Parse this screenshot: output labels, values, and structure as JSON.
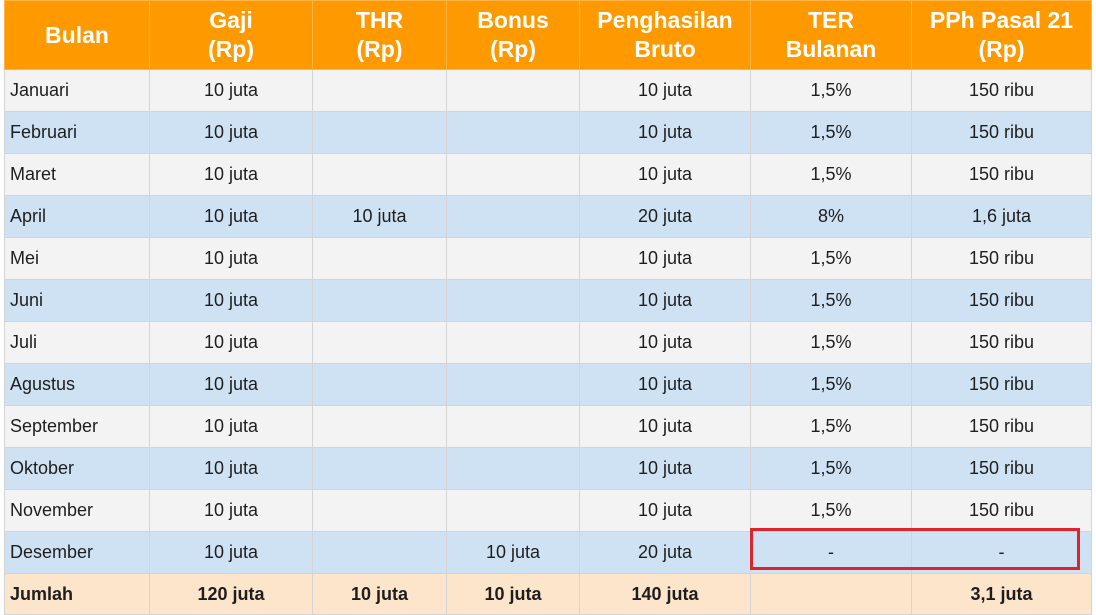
{
  "colors": {
    "header_bg": "#ff9900",
    "header_text": "#ffffff",
    "row_light": "#f3f3f3",
    "row_blue": "#cfe2f3",
    "total_row_bg": "#fde5cc",
    "highlight_border": "#d9252b"
  },
  "table": {
    "headers": [
      [
        "Bulan"
      ],
      [
        "Gaji",
        "(Rp)"
      ],
      [
        "THR",
        "(Rp)"
      ],
      [
        "Bonus",
        "(Rp)"
      ],
      [
        "Penghasilan",
        "Bruto"
      ],
      [
        "TER",
        "Bulanan"
      ],
      [
        "PPh Pasal 21",
        "(Rp)"
      ]
    ],
    "rows": [
      [
        "Januari",
        "10 juta",
        "",
        "",
        "10 juta",
        "1,5%",
        "150 ribu"
      ],
      [
        "Februari",
        "10 juta",
        "",
        "",
        "10 juta",
        "1,5%",
        "150 ribu"
      ],
      [
        "Maret",
        "10 juta",
        "",
        "",
        "10 juta",
        "1,5%",
        "150 ribu"
      ],
      [
        "April",
        "10 juta",
        "10 juta",
        "",
        "20 juta",
        "8%",
        "1,6 juta"
      ],
      [
        "Mei",
        "10 juta",
        "",
        "",
        "10 juta",
        "1,5%",
        "150 ribu"
      ],
      [
        "Juni",
        "10 juta",
        "",
        "",
        "10 juta",
        "1,5%",
        "150 ribu"
      ],
      [
        "Juli",
        "10 juta",
        "",
        "",
        "10 juta",
        "1,5%",
        "150 ribu"
      ],
      [
        "Agustus",
        "10 juta",
        "",
        "",
        "10 juta",
        "1,5%",
        "150 ribu"
      ],
      [
        "September",
        "10 juta",
        "",
        "",
        "10 juta",
        "1,5%",
        "150 ribu"
      ],
      [
        "Oktober",
        "10 juta",
        "",
        "",
        "10 juta",
        "1,5%",
        "150 ribu"
      ],
      [
        "November",
        "10 juta",
        "",
        "",
        "10 juta",
        "1,5%",
        "150 ribu"
      ],
      [
        "Desember",
        "10 juta",
        "",
        "10 juta",
        "20 juta",
        "-",
        "-"
      ]
    ],
    "total": [
      "Jumlah",
      "120 juta",
      "10 juta",
      "10 juta",
      "140 juta",
      "",
      "3,1 juta"
    ]
  }
}
